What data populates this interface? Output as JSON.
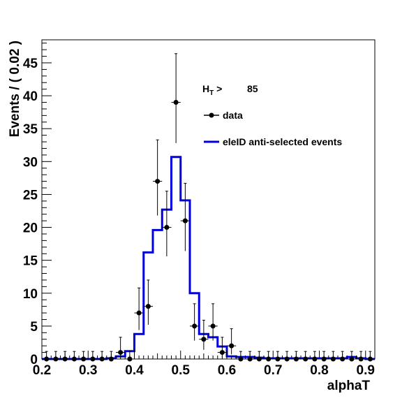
{
  "chart_data": {
    "type": "histogram",
    "xlabel": "alphaT",
    "ylabel": "Events / ( 0.02 )",
    "xlim": [
      0.2,
      0.92
    ],
    "ylim": [
      0,
      48.5
    ],
    "grid": false,
    "x_ticks": [
      "0.2",
      "0.3",
      "0.4",
      "0.5",
      "0.6",
      "0.7",
      "0.8",
      "0.9"
    ],
    "y_ticks": [
      "0",
      "5",
      "10",
      "15",
      "20",
      "25",
      "30",
      "35",
      "40",
      "45"
    ],
    "legend": {
      "placement": "top-right",
      "cut_label_main": "H",
      "cut_label_sub": "T",
      "cut_label_rest": " >",
      "cut_value": "85",
      "entries": [
        {
          "label": "data",
          "style": "marker",
          "color": "#000000"
        },
        {
          "label": "eleID anti-selected events",
          "style": "line",
          "color": "#0000dd"
        }
      ]
    },
    "bin_width": 0.02,
    "series": [
      {
        "name": "data",
        "style": "points",
        "color": "#000000",
        "x": [
          0.21,
          0.23,
          0.25,
          0.27,
          0.29,
          0.31,
          0.33,
          0.35,
          0.37,
          0.39,
          0.41,
          0.43,
          0.45,
          0.47,
          0.49,
          0.51,
          0.53,
          0.55,
          0.57,
          0.59,
          0.61,
          0.63,
          0.65,
          0.67,
          0.69,
          0.71,
          0.73,
          0.75,
          0.77,
          0.79,
          0.81,
          0.83,
          0.85,
          0.87,
          0.89,
          0.91
        ],
        "y": [
          0,
          0,
          0,
          0,
          0,
          0,
          0,
          0,
          1,
          0,
          7,
          8,
          27,
          20,
          39,
          21,
          5,
          3,
          5,
          1,
          2,
          0,
          0,
          0,
          0,
          0,
          0,
          0,
          0,
          0,
          0,
          0,
          0,
          0,
          0,
          0
        ],
        "err_up": [
          1.15,
          1.15,
          1.15,
          1.15,
          1.15,
          1.15,
          1.15,
          1.15,
          2.3,
          1.15,
          3.8,
          4.0,
          6.3,
          5.5,
          7.4,
          5.7,
          3.4,
          2.9,
          3.4,
          2.3,
          2.6,
          1.15,
          1.15,
          1.15,
          1.15,
          1.15,
          1.15,
          1.15,
          1.15,
          1.15,
          1.15,
          1.15,
          1.15,
          1.15,
          1.15,
          1.15
        ],
        "err_down": [
          0,
          0,
          0,
          0,
          0,
          0,
          0,
          0,
          0.8,
          0,
          2.6,
          2.8,
          5.2,
          4.4,
          6.2,
          4.6,
          2.2,
          1.6,
          2.2,
          0.8,
          1.3,
          0,
          0,
          0,
          0,
          0,
          0,
          0,
          0,
          0,
          0,
          0,
          0,
          0,
          0,
          0
        ]
      },
      {
        "name": "eleID anti-selected events",
        "style": "step",
        "color": "#0000dd",
        "bin_edges": [
          0.2,
          0.22,
          0.24,
          0.26,
          0.28,
          0.3,
          0.32,
          0.34,
          0.36,
          0.38,
          0.4,
          0.42,
          0.44,
          0.46,
          0.48,
          0.5,
          0.52,
          0.54,
          0.56,
          0.58,
          0.6,
          0.62,
          0.64,
          0.66,
          0.68,
          0.7,
          0.72,
          0.74,
          0.76,
          0.78,
          0.8,
          0.82,
          0.84,
          0.86,
          0.88,
          0.9,
          0.92
        ],
        "values": [
          0,
          0,
          0,
          0,
          0,
          0,
          0,
          0.1,
          0.4,
          1.2,
          3.8,
          16.2,
          19.6,
          22.7,
          30.7,
          24.1,
          10.0,
          3.8,
          3.3,
          1.9,
          0.4,
          0.3,
          0.3,
          0.2,
          0.1,
          0.1,
          0.1,
          0.1,
          0.1,
          0.1,
          0.1,
          0.1,
          0.1,
          0.3,
          0.1,
          0
        ]
      }
    ]
  }
}
